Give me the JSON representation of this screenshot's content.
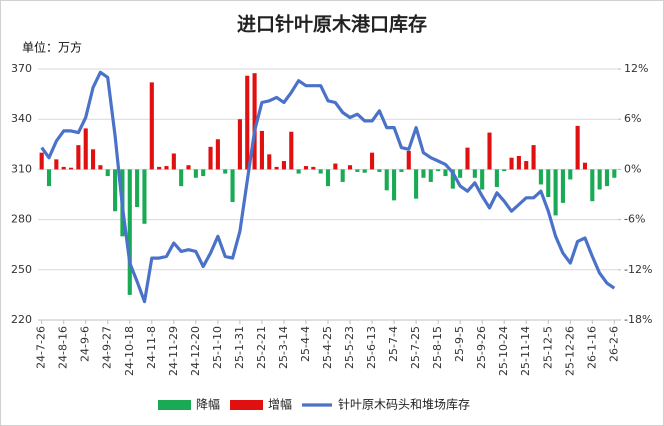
{
  "chart_data": {
    "type": "bar-line",
    "title": "进口针叶原木港口库存",
    "y_unit_label": "单位：万方",
    "categories": [
      "24-7-26",
      null,
      null,
      "24-8-16",
      null,
      null,
      "24-9-6",
      null,
      null,
      "24-9-27",
      null,
      null,
      "24-10-18",
      null,
      null,
      "24-11-8",
      null,
      null,
      "24-11-29",
      null,
      null,
      "24-12-20",
      null,
      null,
      "25-1-10",
      null,
      null,
      "25-1-31",
      null,
      null,
      "25-2-21",
      null,
      null,
      "25-3-14",
      null,
      null,
      "25-4-4",
      null,
      null,
      "25-4-25",
      null,
      null,
      "25-5-23",
      null,
      null,
      "25-6-13",
      null,
      null,
      "25-7-4",
      null,
      null,
      "25-7-25",
      null,
      null,
      "25-8-15",
      null,
      null,
      "25-9-5",
      null,
      null,
      "25-9-26",
      null,
      null,
      "25-10-24",
      null,
      null,
      "25-11-14",
      null,
      null,
      "25-12-5",
      null,
      null,
      "25-12-26",
      null,
      null,
      "26-1-16",
      null,
      null,
      "26-2-6"
    ],
    "series": [
      {
        "name": "降幅",
        "type": "bar",
        "axis": "y2",
        "color": "#1aaa55",
        "values": [
          null,
          -2.0,
          null,
          null,
          null,
          null,
          null,
          null,
          null,
          -0.8,
          -5.0,
          -8.0,
          -15.0,
          -4.5,
          -6.5,
          null,
          null,
          null,
          null,
          -2.0,
          null,
          -1.0,
          -0.8,
          null,
          null,
          -0.5,
          -3.9,
          null,
          null,
          null,
          null,
          null,
          null,
          null,
          null,
          -0.5,
          null,
          null,
          -0.5,
          -2.0,
          null,
          -1.5,
          null,
          -0.3,
          -0.4,
          null,
          -0.3,
          -2.5,
          -3.7,
          -0.3,
          null,
          -3.5,
          -1.0,
          -1.5,
          -0.2,
          -0.8,
          -2.3,
          -1.0,
          null,
          -1.0,
          -2.4,
          null,
          -2.1,
          -0.2,
          null,
          null,
          null,
          null,
          -1.8,
          -3.3,
          -5.5,
          -4.0,
          -1.2,
          null,
          null,
          -3.8,
          -2.4,
          -2.0,
          -1.0
        ]
      },
      {
        "name": "增幅",
        "type": "bar",
        "axis": "y2",
        "color": "#e01010",
        "values": [
          2.0,
          null,
          1.2,
          0.3,
          0.2,
          2.9,
          4.9,
          2.4,
          0.5,
          null,
          null,
          null,
          null,
          null,
          null,
          10.4,
          0.3,
          0.4,
          1.9,
          null,
          0.5,
          null,
          null,
          2.7,
          3.6,
          null,
          null,
          6.0,
          11.2,
          11.5,
          4.6,
          1.8,
          0.3,
          1.0,
          4.5,
          null,
          0.4,
          0.3,
          null,
          null,
          0.7,
          null,
          0.5,
          null,
          null,
          2.0,
          null,
          null,
          null,
          null,
          2.2,
          null,
          null,
          null,
          null,
          null,
          null,
          null,
          2.6,
          null,
          null,
          4.4,
          null,
          null,
          1.4,
          1.6,
          1.0,
          2.9,
          null,
          null,
          null,
          null,
          null,
          5.2,
          0.8,
          null,
          null,
          null,
          null
        ]
      },
      {
        "name": "针叶原木码头和堆场库存",
        "type": "line",
        "axis": "y",
        "color": "#4a72c8",
        "values": [
          323,
          317,
          327,
          333,
          333,
          332,
          341,
          359,
          368,
          365,
          330,
          288,
          254,
          243,
          231,
          257,
          257,
          258,
          266,
          261,
          262,
          261,
          252,
          260,
          270,
          258,
          257,
          273,
          303,
          333,
          350,
          351,
          353,
          350,
          356,
          363,
          360,
          360,
          360,
          351,
          350,
          344,
          341,
          343,
          339,
          339,
          345,
          335,
          335,
          323,
          322,
          335,
          320,
          317,
          315,
          313,
          308,
          300,
          297,
          302,
          294,
          287,
          296,
          291,
          285,
          289,
          293,
          293,
          297,
          285,
          270,
          260,
          254,
          267,
          269,
          258,
          248,
          242,
          239
        ]
      }
    ],
    "ylim": [
      220,
      370
    ],
    "yticks": [
      220,
      250,
      280,
      310,
      340,
      370
    ],
    "y2lim": [
      -18,
      12
    ],
    "y2ticks": [
      {
        "value": -18,
        "label": "-18%"
      },
      {
        "value": -12,
        "label": "-12%"
      },
      {
        "value": -6,
        "label": "-6%"
      },
      {
        "value": 0,
        "label": "0%"
      },
      {
        "value": 6,
        "label": "6%"
      },
      {
        "value": 12,
        "label": "12%"
      }
    ],
    "grid": true,
    "legend": "bottom"
  }
}
